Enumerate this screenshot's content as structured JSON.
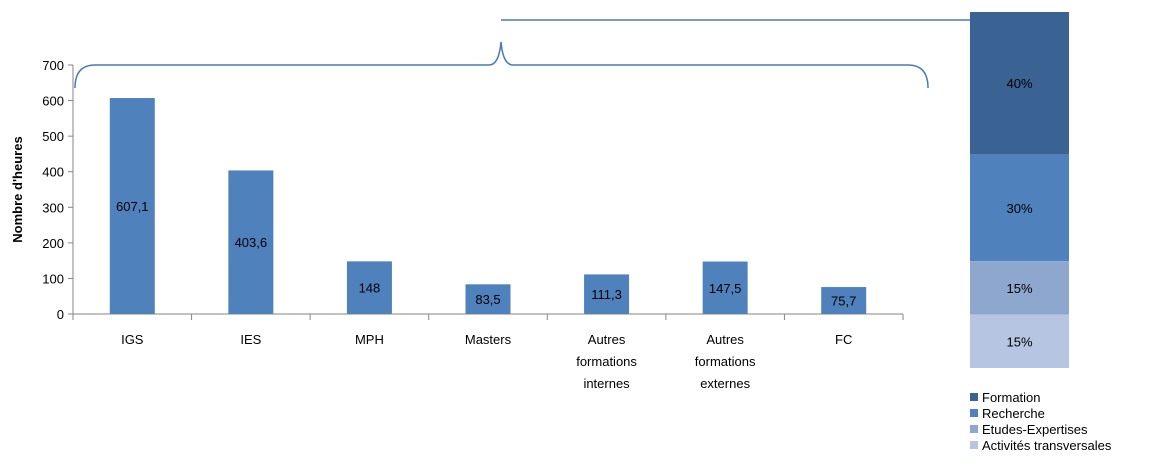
{
  "chart_data": [
    {
      "type": "bar",
      "ylabel": "Nombre d'heures",
      "ylim": [
        0,
        700
      ],
      "yticks": [
        "0",
        "100",
        "200",
        "300",
        "400",
        "500",
        "600",
        "700"
      ],
      "categories": [
        [
          "IGS"
        ],
        [
          "IES"
        ],
        [
          "MPH"
        ],
        [
          "Masters"
        ],
        [
          "Autres",
          "formations",
          "internes"
        ],
        [
          "Autres",
          "formations",
          "externes"
        ],
        [
          "FC"
        ]
      ],
      "values": [
        607.1,
        403.6,
        148,
        83.5,
        111.3,
        147.5,
        75.7
      ],
      "value_labels": [
        "607,1",
        "403,6",
        "148",
        "83,5",
        "111,3",
        "147,5",
        "75,7"
      ],
      "bar_color": "#4f81bd",
      "grid": false
    },
    {
      "type": "stacked-bar",
      "series": [
        {
          "name": "Formation",
          "value": 40,
          "label": "40%",
          "color": "#3a6293"
        },
        {
          "name": "Recherche",
          "value": 30,
          "label": "30%",
          "color": "#4f81bd"
        },
        {
          "name": "Etudes-Expertises",
          "value": 15,
          "label": "15%",
          "color": "#8ea7ce"
        },
        {
          "name": "Activités transversales",
          "value": 15,
          "label": "15%",
          "color": "#b5c5e2"
        }
      ],
      "legend": "bottom"
    }
  ]
}
